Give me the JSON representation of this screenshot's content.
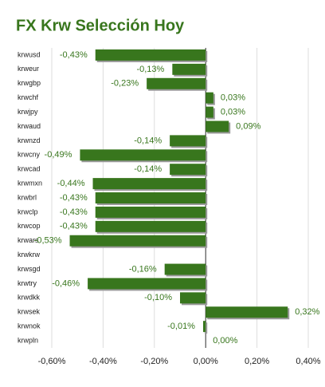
{
  "chart_data": {
    "type": "bar",
    "orientation": "horizontal",
    "title": "FX Krw Selección Hoy",
    "categories": [
      "krwusd",
      "krweur",
      "krwgbp",
      "krwchf",
      "krwjpy",
      "krwaud",
      "krwnzd",
      "krwcny",
      "krwcad",
      "krwmxn",
      "krwbrl",
      "krwclp",
      "krwcop",
      "krwars",
      "krwkrw",
      "krwsgd",
      "krwtry",
      "krwdkk",
      "krwsek",
      "krwnok",
      "krwpln"
    ],
    "values": [
      -0.43,
      -0.13,
      -0.23,
      0.03,
      0.03,
      0.09,
      -0.14,
      -0.49,
      -0.14,
      -0.44,
      -0.43,
      -0.43,
      -0.43,
      -0.53,
      null,
      -0.16,
      -0.46,
      -0.1,
      0.32,
      -0.01,
      0.0
    ],
    "value_labels": [
      "-0,43%",
      "-0,13%",
      "-0,23%",
      "0,03%",
      "0,03%",
      "0,09%",
      "-0,14%",
      "-0,49%",
      "-0,14%",
      "-0,44%",
      "-0,43%",
      "-0,43%",
      "-0,43%",
      "-0,53%",
      null,
      "-0,16%",
      "-0,46%",
      "-0,10%",
      "0,32%",
      "-0,01%",
      "0,00%"
    ],
    "color": "#38761d",
    "xlim": [
      -0.6,
      0.4
    ],
    "xticks": [
      {
        "value": -0.6,
        "label": "-0,60%"
      },
      {
        "value": -0.4,
        "label": "-0,40%"
      },
      {
        "value": -0.2,
        "label": "-0,20%"
      },
      {
        "value": 0,
        "label": "0,00%"
      },
      {
        "value": 0.2,
        "label": "0,20%"
      },
      {
        "value": 0.4,
        "label": "0,40%"
      }
    ],
    "grid": true
  }
}
